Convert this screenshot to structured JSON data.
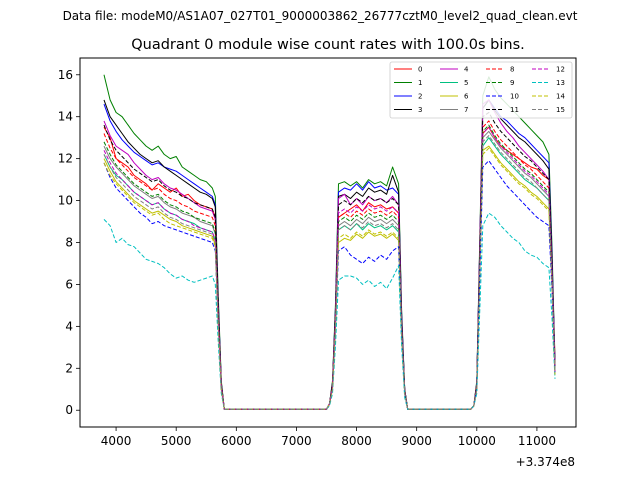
{
  "figure": {
    "suptitle": "Data file: modeM0/AS1A07_027T01_9000003862_26777cztM0_level2_quad_clean.evt"
  },
  "chart_data": {
    "type": "line",
    "title": "Quadrant 0 module wise count rates with 100.0s bins.",
    "xlabel": "",
    "ylabel": "",
    "x_offset_label": "+3.374e8",
    "xlim": [
      3400,
      11650
    ],
    "ylim": [
      -0.8,
      16.8
    ],
    "xticks": [
      4000,
      5000,
      6000,
      7000,
      8000,
      9000,
      10000,
      11000
    ],
    "xtick_labels": [
      "4000",
      "5000",
      "6000",
      "7000",
      "8000",
      "9000",
      "10000",
      "11000"
    ],
    "yticks": [
      0,
      2,
      4,
      6,
      8,
      10,
      12,
      14,
      16
    ],
    "ytick_labels": [
      "0",
      "2",
      "4",
      "6",
      "8",
      "10",
      "12",
      "14",
      "16"
    ],
    "legend_position": "top-right",
    "legend_columns": 4,
    "x": [
      3800,
      3900,
      4000,
      4100,
      4200,
      4300,
      4400,
      4500,
      4600,
      4700,
      4800,
      4900,
      5000,
      5100,
      5200,
      5300,
      5400,
      5500,
      5600,
      5650,
      5700,
      5750,
      5800,
      5850,
      5900,
      6000,
      7000,
      7500,
      7550,
      7600,
      7650,
      7700,
      7800,
      7900,
      8000,
      8100,
      8200,
      8300,
      8400,
      8500,
      8600,
      8700,
      8750,
      8800,
      8850,
      8900,
      9000,
      9500,
      9900,
      9950,
      10000,
      10100,
      10200,
      10300,
      10400,
      10500,
      10600,
      10700,
      10800,
      10900,
      11000,
      11100,
      11200,
      11250,
      11300
    ],
    "series": [
      {
        "name": "0",
        "color": "#ff0000",
        "dash": "solid",
        "values": [
          13.5,
          13.0,
          12.0,
          11.8,
          11.6,
          11.2,
          11.0,
          10.8,
          10.5,
          10.8,
          10.6,
          10.4,
          10.6,
          10.2,
          10.3,
          10.0,
          9.8,
          9.7,
          9.6,
          9.2,
          4.8,
          1.2,
          0.05,
          0.05,
          0.05,
          0.05,
          0.05,
          0.05,
          0.3,
          1.2,
          4.5,
          9.2,
          9.4,
          9.6,
          9.8,
          9.5,
          9.9,
          9.7,
          9.8,
          9.6,
          9.7,
          9.4,
          4.2,
          0.9,
          0.05,
          0.05,
          0.05,
          0.05,
          0.05,
          0.2,
          1.2,
          13.2,
          13.5,
          13.0,
          12.6,
          12.4,
          12.2,
          12.0,
          11.8,
          11.6,
          11.5,
          11.2,
          11.0,
          7.0,
          2.5
        ]
      },
      {
        "name": "1",
        "color": "#008000",
        "dash": "solid",
        "values": [
          16.0,
          14.8,
          14.2,
          14.0,
          13.6,
          13.2,
          12.9,
          12.6,
          12.4,
          12.6,
          12.2,
          12.0,
          12.1,
          11.6,
          11.4,
          11.2,
          11.0,
          10.9,
          10.6,
          10.2,
          5.4,
          1.4,
          0.05,
          0.05,
          0.05,
          0.05,
          0.05,
          0.05,
          0.3,
          1.4,
          5.1,
          10.8,
          10.9,
          10.7,
          10.9,
          10.6,
          11.0,
          10.8,
          10.9,
          10.7,
          11.6,
          10.8,
          4.8,
          1.0,
          0.05,
          0.05,
          0.05,
          0.05,
          0.05,
          0.2,
          1.4,
          15.0,
          15.9,
          15.3,
          14.9,
          14.6,
          14.3,
          14.0,
          13.7,
          13.4,
          13.1,
          12.8,
          12.2,
          7.8,
          2.2
        ]
      },
      {
        "name": "2",
        "color": "#0000ff",
        "dash": "solid",
        "values": [
          14.6,
          13.8,
          13.3,
          12.9,
          12.6,
          12.3,
          12.1,
          11.9,
          11.7,
          11.8,
          11.6,
          11.5,
          11.4,
          11.2,
          11.0,
          10.8,
          10.6,
          10.4,
          10.2,
          9.8,
          5.1,
          1.3,
          0.05,
          0.05,
          0.05,
          0.05,
          0.05,
          0.05,
          0.3,
          1.3,
          4.9,
          10.4,
          10.6,
          10.5,
          10.8,
          10.5,
          10.9,
          10.6,
          10.7,
          10.5,
          10.6,
          10.3,
          4.6,
          1.0,
          0.05,
          0.05,
          0.05,
          0.05,
          0.05,
          0.2,
          1.3,
          14.4,
          14.8,
          14.4,
          14.0,
          13.8,
          13.5,
          13.2,
          13.0,
          12.7,
          12.4,
          12.1,
          11.8,
          7.4,
          2.1
        ]
      },
      {
        "name": "3",
        "color": "#000000",
        "dash": "solid",
        "values": [
          14.8,
          14.0,
          13.6,
          13.2,
          12.8,
          12.5,
          12.2,
          12.0,
          11.8,
          11.9,
          11.6,
          11.4,
          11.2,
          11.0,
          10.8,
          10.6,
          10.4,
          10.3,
          10.1,
          9.7,
          5.0,
          1.3,
          0.05,
          0.05,
          0.05,
          0.05,
          0.05,
          0.05,
          0.3,
          1.3,
          4.8,
          10.2,
          10.3,
          10.1,
          10.4,
          10.2,
          10.6,
          10.4,
          10.5,
          10.3,
          11.2,
          10.4,
          4.5,
          1.0,
          0.05,
          0.05,
          0.05,
          0.05,
          0.05,
          0.2,
          1.3,
          14.4,
          14.8,
          14.3,
          13.9,
          13.6,
          13.3,
          13.0,
          12.8,
          12.5,
          12.2,
          11.9,
          11.5,
          7.2,
          2.0
        ]
      },
      {
        "name": "4",
        "color": "#c000c0",
        "dash": "solid",
        "values": [
          13.8,
          13.1,
          12.6,
          12.4,
          12.2,
          11.8,
          11.5,
          11.2,
          11.0,
          11.1,
          10.8,
          10.6,
          10.5,
          10.3,
          10.1,
          9.9,
          9.7,
          9.6,
          9.5,
          9.1,
          4.7,
          1.2,
          0.05,
          0.05,
          0.05,
          0.05,
          0.05,
          0.05,
          0.3,
          1.2,
          4.6,
          10.1,
          10.3,
          9.8,
          10.1,
          9.8,
          10.2,
          10.0,
          10.1,
          9.9,
          10.2,
          9.8,
          4.3,
          0.9,
          0.05,
          0.05,
          0.05,
          0.05,
          0.05,
          0.2,
          1.2,
          14.6,
          14.8,
          14.2,
          13.7,
          13.3,
          13.0,
          12.6,
          12.3,
          12.0,
          11.7,
          11.4,
          11.0,
          6.9,
          2.0
        ]
      },
      {
        "name": "5",
        "color": "#00c080",
        "dash": "solid",
        "values": [
          12.2,
          11.6,
          11.2,
          11.0,
          10.7,
          10.4,
          10.2,
          10.0,
          9.8,
          9.9,
          9.6,
          9.4,
          9.3,
          9.1,
          9.0,
          8.9,
          8.7,
          8.6,
          8.5,
          8.1,
          4.2,
          1.1,
          0.05,
          0.05,
          0.05,
          0.05,
          0.05,
          0.05,
          0.3,
          1.1,
          4.2,
          8.6,
          8.8,
          8.6,
          8.9,
          8.6,
          8.9,
          8.7,
          8.8,
          8.6,
          8.8,
          8.5,
          3.8,
          0.8,
          0.05,
          0.05,
          0.05,
          0.05,
          0.05,
          0.2,
          1.1,
          12.6,
          13.0,
          12.6,
          12.2,
          11.9,
          11.6,
          11.3,
          11.0,
          10.8,
          10.6,
          10.3,
          10.0,
          6.3,
          1.8
        ]
      },
      {
        "name": "6",
        "color": "#c0c000",
        "dash": "solid",
        "values": [
          12.0,
          11.4,
          10.9,
          10.6,
          10.3,
          10.0,
          9.8,
          9.6,
          9.4,
          9.5,
          9.3,
          9.1,
          9.0,
          8.8,
          8.7,
          8.6,
          8.5,
          8.4,
          8.3,
          7.9,
          4.1,
          1.0,
          0.05,
          0.05,
          0.05,
          0.05,
          0.05,
          0.05,
          0.3,
          1.0,
          4.0,
          8.0,
          8.2,
          8.1,
          8.4,
          8.2,
          8.5,
          8.3,
          8.4,
          8.2,
          8.4,
          8.1,
          3.6,
          0.8,
          0.05,
          0.05,
          0.05,
          0.05,
          0.05,
          0.2,
          1.0,
          12.4,
          12.6,
          12.2,
          11.8,
          11.5,
          11.2,
          10.9,
          10.7,
          10.4,
          10.2,
          9.9,
          9.6,
          6.1,
          1.7
        ]
      },
      {
        "name": "7",
        "color": "#808080",
        "dash": "solid",
        "values": [
          12.6,
          12.0,
          11.6,
          11.3,
          11.0,
          10.7,
          10.5,
          10.3,
          10.1,
          10.2,
          9.9,
          9.7,
          9.6,
          9.4,
          9.3,
          9.2,
          9.0,
          8.9,
          8.8,
          8.4,
          4.3,
          1.1,
          0.05,
          0.05,
          0.05,
          0.05,
          0.05,
          0.05,
          0.3,
          1.1,
          4.3,
          8.8,
          9.0,
          8.8,
          9.1,
          8.9,
          9.2,
          9.0,
          9.1,
          8.9,
          9.1,
          8.8,
          3.9,
          0.8,
          0.05,
          0.05,
          0.05,
          0.05,
          0.05,
          0.2,
          1.1,
          13.0,
          13.3,
          12.9,
          12.5,
          12.2,
          11.9,
          11.6,
          11.3,
          11.1,
          10.8,
          10.5,
          10.2,
          6.4,
          1.8
        ]
      },
      {
        "name": "8",
        "color": "#ff0000",
        "dash": "dashed",
        "values": [
          13.2,
          12.5,
          12.0,
          11.7,
          11.4,
          11.1,
          10.9,
          10.7,
          10.5,
          10.6,
          10.3,
          10.1,
          10.0,
          9.8,
          9.7,
          9.5,
          9.4,
          9.3,
          9.2,
          8.8,
          4.5,
          1.2,
          0.05,
          0.05,
          0.05,
          0.05,
          0.05,
          0.05,
          0.3,
          1.2,
          4.5,
          9.2,
          9.4,
          9.2,
          9.5,
          9.3,
          9.6,
          9.4,
          9.5,
          9.3,
          9.5,
          9.2,
          4.1,
          0.9,
          0.05,
          0.05,
          0.05,
          0.05,
          0.05,
          0.2,
          1.2,
          13.5,
          13.8,
          13.3,
          12.9,
          12.6,
          12.3,
          12.0,
          11.7,
          11.5,
          11.2,
          10.9,
          10.6,
          6.6,
          1.9
        ]
      },
      {
        "name": "9",
        "color": "#008000",
        "dash": "dashed",
        "values": [
          12.8,
          12.2,
          11.7,
          11.4,
          11.1,
          10.8,
          10.6,
          10.4,
          10.2,
          10.3,
          10.0,
          9.8,
          9.7,
          9.5,
          9.4,
          9.2,
          9.1,
          9.0,
          8.9,
          8.5,
          4.4,
          1.1,
          0.05,
          0.05,
          0.05,
          0.05,
          0.05,
          0.05,
          0.3,
          1.1,
          4.4,
          9.0,
          9.2,
          9.0,
          9.3,
          9.1,
          9.4,
          9.2,
          9.3,
          9.1,
          9.3,
          9.0,
          4.0,
          0.9,
          0.05,
          0.05,
          0.05,
          0.05,
          0.05,
          0.2,
          1.1,
          13.3,
          13.6,
          13.1,
          12.7,
          12.4,
          12.1,
          11.8,
          11.5,
          11.3,
          11.0,
          10.7,
          10.4,
          6.5,
          1.8
        ]
      },
      {
        "name": "10",
        "color": "#0000ff",
        "dash": "dashed",
        "values": [
          11.8,
          11.1,
          10.6,
          10.3,
          10.0,
          9.7,
          9.4,
          9.2,
          8.9,
          9.0,
          8.8,
          8.7,
          8.6,
          8.5,
          8.4,
          8.3,
          8.2,
          8.1,
          8.0,
          7.6,
          3.9,
          1.0,
          0.05,
          0.05,
          0.05,
          0.05,
          0.05,
          0.05,
          0.3,
          1.0,
          3.8,
          7.6,
          7.8,
          7.4,
          7.2,
          7.0,
          7.3,
          7.1,
          7.4,
          7.2,
          7.6,
          7.8,
          3.5,
          0.7,
          0.05,
          0.05,
          0.05,
          0.05,
          0.05,
          0.2,
          1.0,
          11.6,
          11.9,
          11.5,
          11.1,
          10.7,
          10.4,
          10.1,
          9.8,
          9.5,
          9.2,
          9.0,
          8.8,
          5.7,
          1.7
        ]
      },
      {
        "name": "11",
        "color": "#000000",
        "dash": "dashed",
        "values": [
          13.6,
          12.9,
          12.4,
          12.1,
          11.8,
          11.5,
          11.3,
          11.1,
          10.9,
          11.0,
          10.7,
          10.5,
          10.4,
          10.2,
          10.1,
          9.9,
          9.8,
          9.7,
          9.6,
          9.2,
          4.7,
          1.2,
          0.05,
          0.05,
          0.05,
          0.05,
          0.05,
          0.05,
          0.3,
          1.2,
          4.7,
          9.8,
          10.0,
          9.8,
          10.1,
          9.9,
          10.2,
          10.0,
          10.1,
          9.9,
          10.1,
          9.8,
          4.3,
          0.9,
          0.05,
          0.05,
          0.05,
          0.05,
          0.05,
          0.2,
          1.2,
          14.0,
          14.2,
          13.7,
          13.3,
          13.0,
          12.7,
          12.4,
          12.1,
          11.9,
          11.6,
          11.3,
          11.0,
          6.9,
          1.9
        ]
      },
      {
        "name": "12",
        "color": "#c000c0",
        "dash": "dashed",
        "values": [
          12.4,
          11.8,
          11.3,
          11.0,
          10.7,
          10.4,
          10.2,
          10.0,
          9.8,
          9.9,
          9.6,
          9.4,
          9.3,
          9.1,
          9.0,
          8.8,
          8.7,
          8.6,
          8.5,
          8.1,
          4.2,
          1.1,
          0.05,
          0.05,
          0.05,
          0.05,
          0.05,
          0.05,
          0.3,
          1.1,
          4.3,
          9.4,
          9.6,
          9.4,
          9.7,
          9.5,
          9.8,
          9.6,
          9.7,
          9.5,
          9.7,
          9.4,
          4.1,
          0.9,
          0.05,
          0.05,
          0.05,
          0.05,
          0.05,
          0.2,
          1.1,
          13.2,
          13.5,
          13.0,
          12.6,
          12.3,
          12.0,
          11.7,
          11.4,
          11.2,
          10.9,
          10.6,
          10.3,
          6.5,
          1.8
        ]
      },
      {
        "name": "13",
        "color": "#00c0c0",
        "dash": "dashed",
        "values": [
          9.1,
          8.8,
          8.0,
          8.2,
          7.9,
          7.8,
          7.5,
          7.2,
          7.1,
          7.0,
          6.8,
          6.5,
          6.3,
          6.4,
          6.2,
          6.1,
          6.2,
          6.3,
          6.4,
          6.0,
          3.2,
          0.8,
          0.05,
          0.05,
          0.05,
          0.05,
          0.05,
          0.05,
          0.2,
          0.8,
          3.1,
          6.2,
          6.4,
          6.4,
          6.3,
          6.0,
          6.2,
          5.9,
          6.1,
          5.8,
          6.3,
          6.9,
          3.1,
          0.6,
          0.05,
          0.05,
          0.05,
          0.05,
          0.05,
          0.2,
          0.8,
          8.8,
          9.4,
          9.2,
          8.8,
          8.5,
          8.2,
          8.0,
          7.6,
          7.4,
          7.3,
          7.0,
          6.8,
          4.4,
          1.5
        ]
      },
      {
        "name": "14",
        "color": "#c0c000",
        "dash": "dashed",
        "values": [
          11.8,
          11.2,
          10.8,
          10.5,
          10.2,
          9.9,
          9.7,
          9.5,
          9.3,
          9.4,
          9.1,
          8.9,
          8.8,
          8.7,
          8.6,
          8.5,
          8.4,
          8.3,
          8.2,
          7.8,
          4.0,
          1.0,
          0.05,
          0.05,
          0.05,
          0.05,
          0.05,
          0.05,
          0.3,
          1.0,
          4.0,
          8.2,
          8.4,
          8.2,
          8.5,
          8.3,
          8.6,
          8.4,
          8.5,
          8.3,
          8.5,
          8.2,
          3.7,
          0.8,
          0.05,
          0.05,
          0.05,
          0.05,
          0.05,
          0.2,
          1.0,
          12.2,
          12.5,
          12.1,
          11.7,
          11.4,
          11.1,
          10.8,
          10.6,
          10.3,
          10.1,
          9.8,
          9.5,
          6.0,
          1.7
        ]
      },
      {
        "name": "15",
        "color": "#808080",
        "dash": "dashed",
        "values": [
          12.2,
          11.6,
          11.1,
          10.8,
          10.5,
          10.2,
          10.0,
          9.8,
          9.6,
          9.7,
          9.4,
          9.2,
          9.1,
          8.9,
          8.8,
          8.7,
          8.6,
          8.5,
          8.4,
          8.0,
          4.1,
          1.0,
          0.05,
          0.05,
          0.05,
          0.05,
          0.05,
          0.05,
          0.3,
          1.0,
          4.1,
          8.6,
          8.8,
          8.6,
          8.9,
          8.7,
          9.0,
          8.8,
          8.9,
          8.7,
          8.9,
          8.6,
          3.8,
          0.8,
          0.05,
          0.05,
          0.05,
          0.05,
          0.05,
          0.2,
          1.0,
          12.8,
          13.1,
          12.7,
          12.3,
          12.0,
          11.7,
          11.4,
          11.1,
          10.9,
          10.6,
          10.3,
          10.0,
          6.3,
          1.8
        ]
      }
    ]
  }
}
